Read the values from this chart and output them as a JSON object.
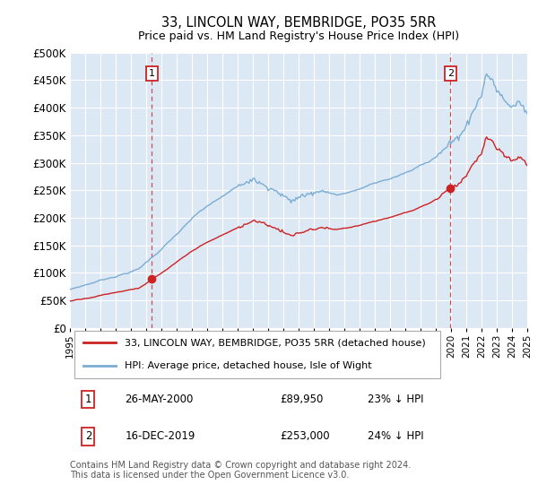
{
  "title": "33, LINCOLN WAY, BEMBRIDGE, PO35 5RR",
  "subtitle": "Price paid vs. HM Land Registry's House Price Index (HPI)",
  "xlim_years": [
    1995,
    2025
  ],
  "ylim": [
    0,
    500000
  ],
  "yticks": [
    0,
    50000,
    100000,
    150000,
    200000,
    250000,
    300000,
    350000,
    400000,
    450000,
    500000
  ],
  "ytick_labels": [
    "£0",
    "£50K",
    "£100K",
    "£150K",
    "£200K",
    "£250K",
    "£300K",
    "£350K",
    "£400K",
    "£450K",
    "£500K"
  ],
  "xticks": [
    1995,
    1996,
    1997,
    1998,
    1999,
    2000,
    2001,
    2002,
    2003,
    2004,
    2005,
    2006,
    2007,
    2008,
    2009,
    2010,
    2011,
    2012,
    2013,
    2014,
    2015,
    2016,
    2017,
    2018,
    2019,
    2020,
    2021,
    2022,
    2023,
    2024,
    2025
  ],
  "sale1_year": 2000.38,
  "sale1_price": 89950,
  "sale2_year": 2019.96,
  "sale2_price": 253000,
  "hpi_color": "#7aadd4",
  "price_color": "#cc2222",
  "dashed_line_color": "#cc3333",
  "legend_label1": "33, LINCOLN WAY, BEMBRIDGE, PO35 5RR (detached house)",
  "legend_label2": "HPI: Average price, detached house, Isle of Wight",
  "sale1_date": "26-MAY-2000",
  "sale1_amount": "£89,950",
  "sale1_hpi_pct": "23% ↓ HPI",
  "sale2_date": "16-DEC-2019",
  "sale2_amount": "£253,000",
  "sale2_hpi_pct": "24% ↓ HPI",
  "footnote": "Contains HM Land Registry data © Crown copyright and database right 2024.\nThis data is licensed under the Open Government Licence v3.0.",
  "bg_color": "#dde8f5",
  "box_edge_color": "#cc2222"
}
